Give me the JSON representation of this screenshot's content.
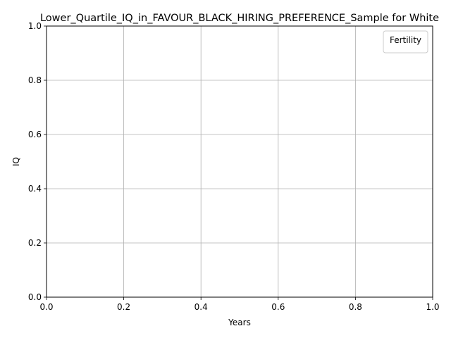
{
  "chart_data": {
    "type": "line",
    "title": "Lower_Quartile_IQ_in_FAVOUR_BLACK_HIRING_PREFERENCE_Sample for White",
    "xlabel": "Years",
    "ylabel": "IQ",
    "xlim": [
      0.0,
      1.0
    ],
    "ylim": [
      0.0,
      1.0
    ],
    "xticks": [
      0.0,
      0.2,
      0.4,
      0.6,
      0.8,
      1.0
    ],
    "yticks": [
      0.0,
      0.2,
      0.4,
      0.6,
      0.8,
      1.0
    ],
    "xtick_labels": [
      "0.0",
      "0.2",
      "0.4",
      "0.6",
      "0.8",
      "1.0"
    ],
    "ytick_labels": [
      "0.0",
      "0.2",
      "0.4",
      "0.6",
      "0.8",
      "1.0"
    ],
    "grid": true,
    "legend": {
      "title": "Fertility",
      "placement": "top-right",
      "entries": []
    },
    "series": []
  },
  "colors": {
    "grid": "#b0b0b0",
    "axes": "#000000",
    "background": "#ffffff"
  }
}
